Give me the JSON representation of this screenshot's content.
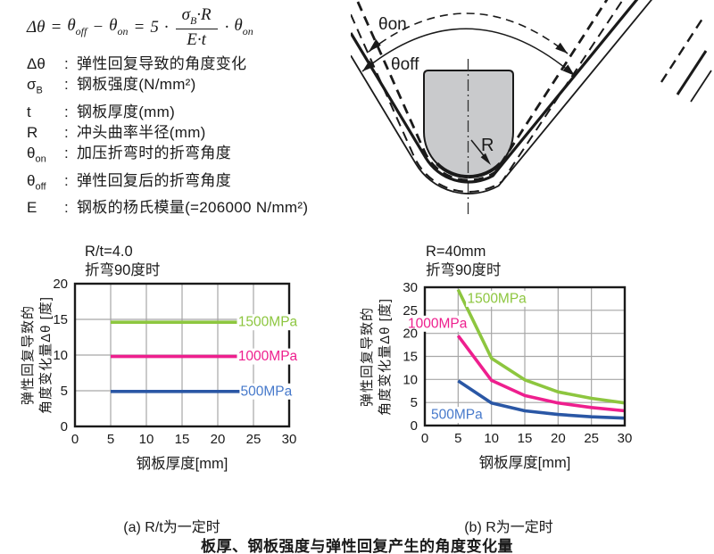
{
  "formula": {
    "lhs": "Δθ",
    "eq1": "=",
    "theta1": "θ",
    "sub1": "off",
    "minus": "−",
    "theta2": "θ",
    "sub2": "on",
    "eq2": "=",
    "coef": "5",
    "dot1": "·",
    "num_sigma": "σ",
    "num_sigma_sub": "B",
    "num_rest": "·R",
    "den": "E·t",
    "dot2": "·",
    "theta3": "θ",
    "sub3": "on"
  },
  "legend": {
    "items": [
      {
        "base": "Δθ",
        "sub": "",
        "desc": "弹性回复导致的角度变化"
      },
      {
        "base": "σ",
        "sub": "B",
        "desc": "钢板强度(N/mm²)"
      },
      {
        "base": "t",
        "sub": "",
        "desc": "钢板厚度(mm)"
      },
      {
        "base": "R",
        "sub": "",
        "desc": "冲头曲率半径(mm)"
      },
      {
        "base": "θ",
        "sub": "on",
        "desc": "加压折弯时的折弯角度"
      },
      {
        "base": "θ",
        "sub": "off",
        "desc": "弹性回复后的折弯角度"
      },
      {
        "base": "E",
        "sub": "",
        "desc": "钢板的杨氏模量(=206000 N/mm²)"
      }
    ]
  },
  "diagram": {
    "theta_on_label": "θon",
    "theta_off_label": "θoff",
    "radius_label": "R"
  },
  "chart_data": [
    {
      "type": "line",
      "title_lines": [
        "R/t=4.0",
        "折弯90度时"
      ],
      "xlabel": "钢板厚度[mm]",
      "ylabel_lines": [
        "弹性回复导致的",
        "角度变化量Δθ [度]"
      ],
      "xlim": [
        0,
        30
      ],
      "ylim": [
        0,
        20
      ],
      "xticks": [
        0,
        5,
        10,
        15,
        20,
        25,
        30
      ],
      "yticks": [
        0,
        5,
        10,
        15,
        20
      ],
      "grid": true,
      "legend_position": "right-of-lines",
      "series": [
        {
          "name": "1500MPa",
          "color": "#8dc63f",
          "label_color": "#8dc63f",
          "x": [
            5,
            23.2
          ],
          "y": [
            14.6,
            14.6
          ],
          "label_center": [
            27,
            14.6
          ]
        },
        {
          "name": "1000MPa",
          "color": "#ee1f8e",
          "label_color": "#ee1f8e",
          "x": [
            5,
            23.2
          ],
          "y": [
            9.8,
            9.8
          ],
          "label_center": [
            27,
            9.8
          ]
        },
        {
          "name": "500MPa",
          "color": "#2a57a5",
          "label_color": "#4679cb",
          "x": [
            5,
            23.2
          ],
          "y": [
            4.9,
            4.9
          ],
          "label_center": [
            26.8,
            4.9
          ]
        }
      ]
    },
    {
      "type": "line",
      "title_lines": [
        "R=40mm",
        "折弯90度时"
      ],
      "xlabel": "钢板厚度[mm]",
      "ylabel_lines": [
        "弹性回复导致的",
        "角度变化量Δθ [度]"
      ],
      "xlim": [
        0,
        30
      ],
      "ylim": [
        0,
        30
      ],
      "xticks": [
        0,
        5,
        10,
        15,
        20,
        25,
        30
      ],
      "yticks": [
        0,
        5,
        10,
        15,
        20,
        25,
        30
      ],
      "grid": true,
      "legend_position": "inline",
      "series": [
        {
          "name": "1500MPa",
          "color": "#8dc63f",
          "label_color": "#8dc63f",
          "x": [
            5,
            10,
            15,
            20,
            25,
            30
          ],
          "y": [
            29.5,
            14.6,
            9.9,
            7.3,
            5.9,
            4.9
          ],
          "label_center": [
            10.8,
            27.5
          ]
        },
        {
          "name": "1000MPa",
          "color": "#ee1f8e",
          "label_color": "#ee1f8e",
          "x": [
            5,
            10,
            15,
            20,
            25,
            30
          ],
          "y": [
            19.5,
            9.8,
            6.5,
            4.9,
            3.9,
            3.2
          ],
          "label_center": [
            1.9,
            22.1
          ]
        },
        {
          "name": "500MPa",
          "color": "#2a57a5",
          "label_color": "#4679cb",
          "x": [
            5,
            10,
            15,
            20,
            25,
            30
          ],
          "y": [
            9.7,
            4.9,
            3.2,
            2.4,
            1.9,
            1.6
          ],
          "label_center": [
            4.8,
            2.3
          ]
        }
      ]
    }
  ],
  "captions": {
    "a": "(a) R/t为一定时",
    "b": "(b) R为一定时",
    "title": "板厚、钢板强度与弹性回复产生的角度变化量"
  },
  "colors": {
    "line_1500mpa": "#8dc63f",
    "line_1000mpa": "#ee1f8e",
    "line_500mpa": "#2a57a5",
    "grid": "#a6a6a6",
    "punch_fill": "#c9cacc",
    "ink": "#1a1a1a"
  }
}
